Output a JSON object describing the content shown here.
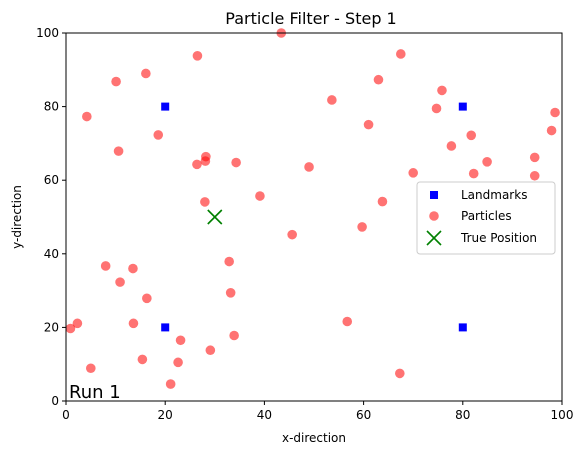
{
  "chart_data": {
    "type": "scatter",
    "title": "Particle Filter - Step 1",
    "xlabel": "x-direction",
    "ylabel": "y-direction",
    "xlim": [
      0,
      100
    ],
    "ylim": [
      0,
      100
    ],
    "xticks": [
      0,
      20,
      40,
      60,
      80,
      100
    ],
    "yticks": [
      0,
      20,
      40,
      60,
      80,
      100
    ],
    "grid": false,
    "legend_position": "center-right",
    "annotation": "Run 1",
    "series": [
      {
        "name": "Landmarks",
        "marker": "square",
        "color": "#0000ff",
        "points": [
          [
            20,
            80
          ],
          [
            80,
            80
          ],
          [
            20,
            20
          ],
          [
            80,
            20
          ]
        ]
      },
      {
        "name": "Particles",
        "marker": "circle",
        "color": "#ff0000",
        "points": [
          [
            43.4,
            100
          ],
          [
            26.5,
            93.8
          ],
          [
            67.5,
            94.3
          ],
          [
            16.1,
            89.0
          ],
          [
            10.1,
            86.8
          ],
          [
            63.0,
            87.3
          ],
          [
            75.8,
            84.4
          ],
          [
            53.6,
            81.8
          ],
          [
            4.2,
            77.3
          ],
          [
            74.7,
            79.5
          ],
          [
            98.6,
            78.4
          ],
          [
            61.0,
            75.1
          ],
          [
            18.6,
            72.3
          ],
          [
            81.7,
            72.2
          ],
          [
            97.9,
            73.5
          ],
          [
            77.7,
            69.3
          ],
          [
            10.6,
            67.9
          ],
          [
            28.2,
            66.4
          ],
          [
            94.5,
            66.2
          ],
          [
            28.1,
            65.2
          ],
          [
            26.4,
            64.3
          ],
          [
            34.3,
            64.8
          ],
          [
            84.9,
            65.0
          ],
          [
            49.0,
            63.6
          ],
          [
            70.0,
            62.0
          ],
          [
            82.2,
            61.8
          ],
          [
            94.5,
            61.2
          ],
          [
            39.1,
            55.7
          ],
          [
            28.0,
            54.1
          ],
          [
            63.8,
            54.2
          ],
          [
            59.7,
            47.3
          ],
          [
            45.6,
            45.2
          ],
          [
            32.9,
            37.9
          ],
          [
            8.0,
            36.7
          ],
          [
            13.5,
            36.0
          ],
          [
            10.9,
            32.3
          ],
          [
            33.2,
            29.4
          ],
          [
            16.3,
            27.9
          ],
          [
            13.6,
            21.1
          ],
          [
            56.7,
            21.6
          ],
          [
            2.3,
            21.1
          ],
          [
            0.9,
            19.7
          ],
          [
            33.9,
            17.8
          ],
          [
            23.1,
            16.5
          ],
          [
            29.1,
            13.8
          ],
          [
            15.4,
            11.3
          ],
          [
            22.6,
            10.5
          ],
          [
            5.0,
            8.9
          ],
          [
            67.3,
            7.5
          ],
          [
            21.1,
            4.6
          ]
        ]
      },
      {
        "name": "True Position",
        "marker": "x",
        "color": "#008000",
        "points": [
          [
            30,
            50
          ]
        ]
      }
    ]
  }
}
